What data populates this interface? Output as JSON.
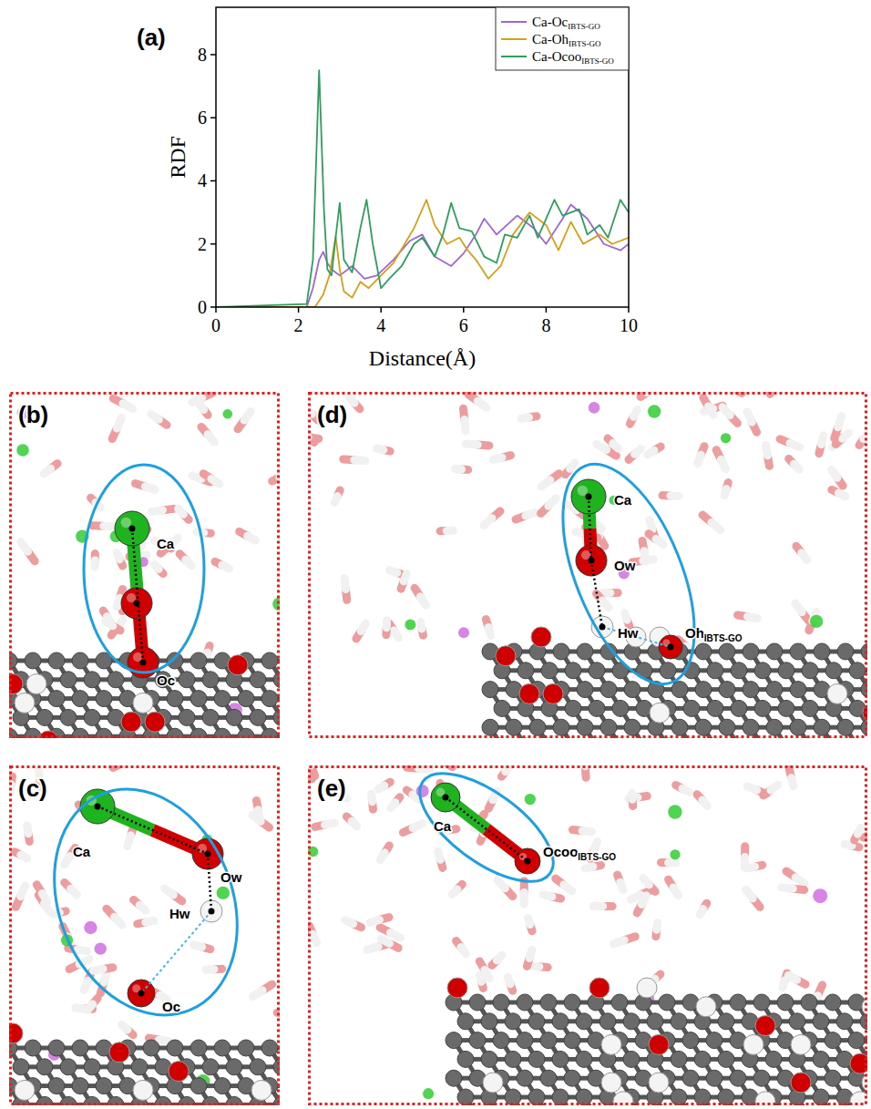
{
  "chart_data": {
    "type": "line",
    "panel_label": "(a)",
    "x_label": "Distance(Å)",
    "y_label": "RDF",
    "xlim": [
      0,
      10
    ],
    "xticks": [
      0,
      2,
      4,
      6,
      8,
      10
    ],
    "ylim": [
      0,
      9.5
    ],
    "yticks": [
      0,
      2,
      4,
      6,
      8
    ],
    "legend": "top-right",
    "series": [
      {
        "name": "Ca-Oc",
        "subscript": "IBTS-GO",
        "color": "#a066d3",
        "x": [
          0,
          2.2,
          2.35,
          2.5,
          2.6,
          2.7,
          2.8,
          3.0,
          3.3,
          3.6,
          3.9,
          4.3,
          4.7,
          5.0,
          5.3,
          5.7,
          6.0,
          6.3,
          6.5,
          6.8,
          7.3,
          7.7,
          8.0,
          8.4,
          8.6,
          9.0,
          9.4,
          9.8,
          10
        ],
        "values": [
          0,
          0,
          0.6,
          1.5,
          1.75,
          1.4,
          1.2,
          1.0,
          1.3,
          0.9,
          1.0,
          1.5,
          2.1,
          2.3,
          1.6,
          1.3,
          1.7,
          2.3,
          2.8,
          2.3,
          2.9,
          2.5,
          2.0,
          2.8,
          3.25,
          2.8,
          2.0,
          1.8,
          2.0
        ]
      },
      {
        "name": "Ca-Oh",
        "subscript": "IBTS-GO",
        "color": "#d4a017",
        "x": [
          0,
          2.4,
          2.6,
          2.75,
          2.9,
          3.0,
          3.1,
          3.3,
          3.5,
          3.7,
          4.0,
          4.3,
          4.8,
          5.1,
          5.3,
          5.6,
          5.9,
          6.1,
          6.3,
          6.6,
          6.9,
          7.2,
          7.6,
          8.0,
          8.3,
          8.6,
          8.9,
          9.3,
          9.6,
          10
        ],
        "values": [
          0,
          0,
          0.4,
          1.0,
          2.25,
          1.2,
          0.5,
          0.3,
          0.8,
          0.6,
          1.0,
          1.4,
          2.5,
          3.4,
          2.6,
          2.0,
          2.2,
          1.8,
          1.5,
          0.9,
          1.3,
          2.3,
          3.0,
          2.6,
          1.8,
          2.7,
          2.0,
          2.3,
          2.0,
          2.2
        ]
      },
      {
        "name": "Ca-Ocoo",
        "subscript": "IBTS-GO",
        "color": "#2e9e5e",
        "x": [
          0,
          2.2,
          2.35,
          2.5,
          2.62,
          2.7,
          2.8,
          2.9,
          3.0,
          3.1,
          3.3,
          3.5,
          3.65,
          3.8,
          4.0,
          4.2,
          4.5,
          4.8,
          5.0,
          5.3,
          5.5,
          5.7,
          5.9,
          6.2,
          6.5,
          6.8,
          7.0,
          7.3,
          7.6,
          7.8,
          8.0,
          8.2,
          8.4,
          8.6,
          8.8,
          9.0,
          9.3,
          9.5,
          9.8,
          10
        ],
        "values": [
          0,
          0.1,
          1.5,
          7.5,
          3.0,
          1.2,
          1.0,
          2.2,
          3.3,
          1.5,
          1.1,
          2.5,
          3.4,
          2.0,
          0.6,
          0.9,
          1.3,
          2.0,
          2.2,
          1.6,
          2.3,
          3.3,
          2.5,
          2.4,
          1.6,
          1.4,
          2.3,
          2.2,
          2.9,
          2.2,
          2.8,
          3.4,
          2.9,
          3.0,
          3.1,
          2.3,
          2.6,
          2.2,
          3.4,
          3.0
        ]
      }
    ]
  },
  "panels": [
    {
      "letter": "(b)",
      "labels": [
        {
          "text": "Ca"
        },
        {
          "text": "Oc"
        }
      ]
    },
    {
      "letter": "(d)",
      "labels": [
        {
          "text": "Ca"
        },
        {
          "text": "Ow"
        },
        {
          "text": "Hw"
        },
        {
          "text": "Oh",
          "subscript": "IBTS-GO"
        }
      ]
    },
    {
      "letter": "(c)",
      "labels": [
        {
          "text": "Ca"
        },
        {
          "text": "Ow"
        },
        {
          "text": "Hw"
        },
        {
          "text": "Oc"
        }
      ]
    },
    {
      "letter": "(e)",
      "labels": [
        {
          "text": "Ca"
        },
        {
          "text": "Ocoo",
          "subscript": "IBTS-GO"
        }
      ]
    }
  ]
}
